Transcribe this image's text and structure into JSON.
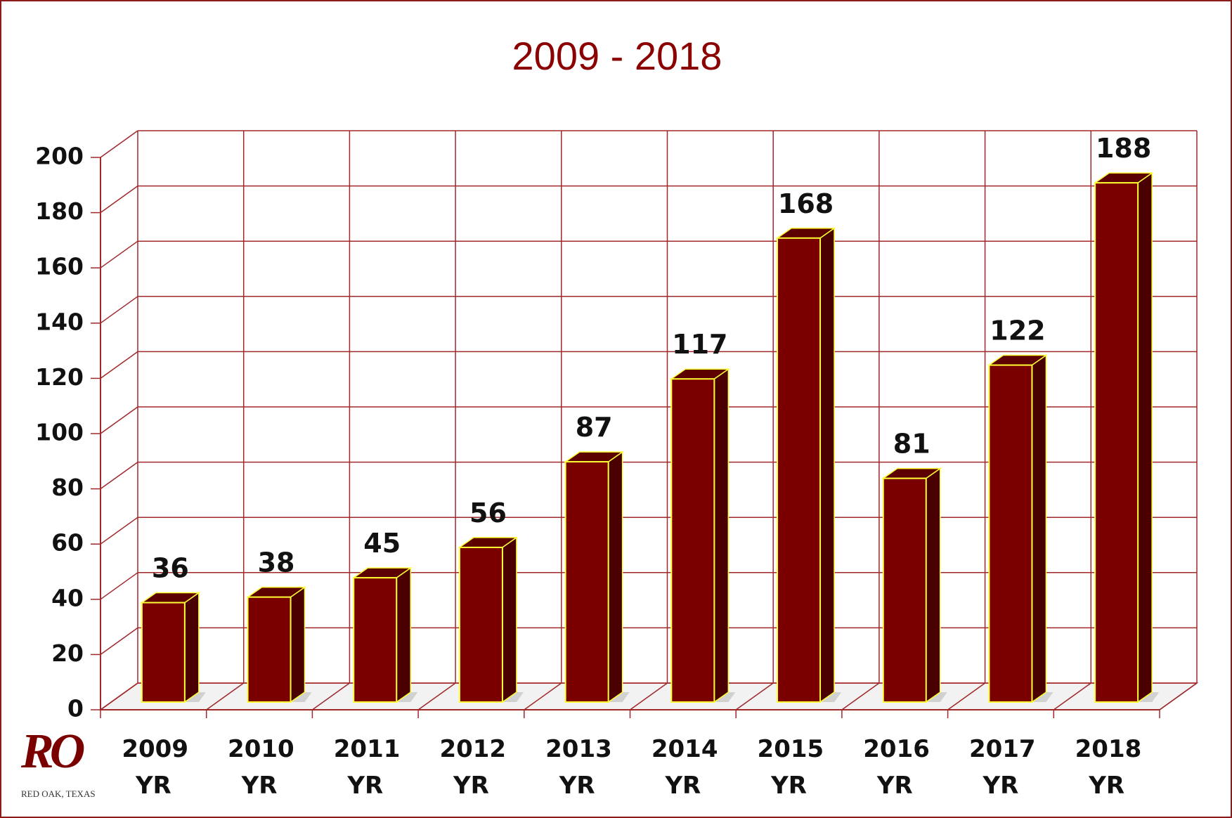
{
  "chart_data": {
    "type": "bar3d",
    "title": "2009 - 2018",
    "categories": [
      "2009 YR",
      "2010 YR",
      "2011 YR",
      "2012 YR",
      "2013 YR",
      "2014 YR",
      "2015 YR",
      "2016 YR",
      "2017 YR",
      "2018 YR"
    ],
    "values": [
      36,
      38,
      45,
      56,
      87,
      117,
      168,
      81,
      122,
      188
    ],
    "color": "#7a0000",
    "edge_color": "#ffff33",
    "grid_color": "#a0282a",
    "ylim": [
      0,
      200
    ],
    "yticks": [
      0,
      20,
      40,
      60,
      80,
      100,
      120,
      140,
      160,
      180,
      200
    ],
    "grid": true
  },
  "logo": {
    "mark": "RO",
    "caption": "RED OAK, TEXAS"
  }
}
